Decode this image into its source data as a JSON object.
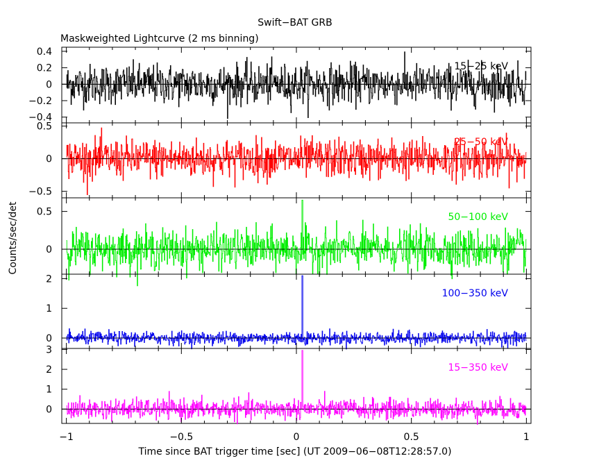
{
  "chart_data": {
    "type": "line",
    "title": "Swift−BAT GRB",
    "subtitle": "Maskweighted Lightcurve (2 ms binning)",
    "xlabel": "Time since BAT trigger time [sec] (UT 2009−06−08T12:28:57.0)",
    "ylabel": "Counts/sec/det",
    "xlim": [
      -1.02,
      1.02
    ],
    "x_ticks": [
      -1,
      -0.5,
      0,
      0.5,
      1
    ],
    "x_tick_labels": [
      "−1",
      "−0.5",
      "0",
      "0.5",
      "1"
    ],
    "bin_width_sec": 0.002,
    "x_range": [
      -1.0,
      1.0
    ],
    "panels": [
      {
        "name": "15−25 keV",
        "color": "#000000",
        "ylim": [
          -0.47,
          0.45
        ],
        "y_ticks": [
          -0.4,
          -0.2,
          0,
          0.2,
          0.4
        ],
        "y_tick_labels": [
          "−0.4",
          "−0.2",
          "0",
          "0.2",
          "0.4"
        ],
        "noise_sigma": 0.12,
        "peak": null
      },
      {
        "name": "25−50 keV",
        "color": "#ff0000",
        "ylim": [
          -0.6,
          0.55
        ],
        "y_ticks": [
          -0.5,
          0,
          0.5
        ],
        "y_tick_labels": [
          "−0.5",
          "0",
          "0.5"
        ],
        "noise_sigma": 0.15,
        "peak": null
      },
      {
        "name": "50−100 keV",
        "color": "#00ee00",
        "ylim": [
          -0.33,
          0.68
        ],
        "y_ticks": [
          0,
          0.5
        ],
        "y_tick_labels": [
          "0",
          "0.5"
        ],
        "noise_sigma": 0.13,
        "peak": {
          "x": 0.025,
          "y": 0.65
        }
      },
      {
        "name": "100−350 keV",
        "color": "#0000ee",
        "ylim": [
          -0.35,
          2.15
        ],
        "y_ticks": [
          0,
          1,
          2
        ],
        "y_tick_labels": [
          "0",
          "1",
          "2"
        ],
        "noise_sigma": 0.11,
        "peak": {
          "x": 0.025,
          "y": 2.1
        }
      },
      {
        "name": "15−350 keV",
        "color": "#ff00ff",
        "ylim": [
          -0.72,
          3.05
        ],
        "y_ticks": [
          0,
          1,
          2,
          3
        ],
        "y_tick_labels": [
          "0",
          "1",
          "2",
          "3"
        ],
        "noise_sigma": 0.25,
        "peak": {
          "x": 0.025,
          "y": 2.95
        }
      }
    ],
    "grid": false,
    "legend": "panel labels top-right"
  }
}
